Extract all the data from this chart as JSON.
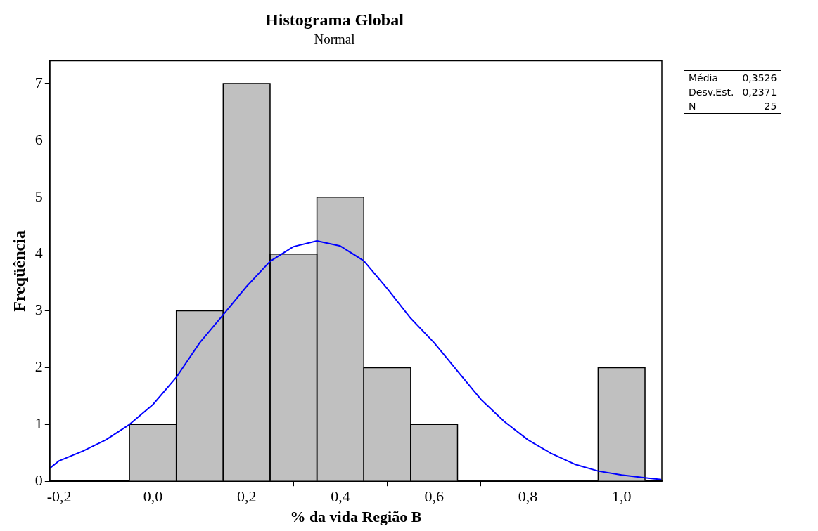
{
  "chart_data": {
    "type": "histogram",
    "title": "Histograma Global",
    "subtitle": "Normal",
    "xlabel": "% da vida Região B",
    "ylabel": "Freqüência",
    "bins": [
      -0.05,
      0.05,
      0.15,
      0.25,
      0.35,
      0.45,
      0.55,
      0.65,
      0.75,
      0.85,
      0.95,
      1.05
    ],
    "values": [
      1,
      3,
      7,
      4,
      5,
      2,
      1,
      0,
      0,
      0,
      2
    ],
    "color": "#c0c0c0",
    "series": [
      {
        "type": "line",
        "color": "#0000ff",
        "x": [
          -0.22,
          -0.2,
          -0.15,
          -0.1,
          -0.05,
          0.0,
          0.05,
          0.1,
          0.15,
          0.2,
          0.25,
          0.3,
          0.35,
          0.4,
          0.45,
          0.5,
          0.55,
          0.6,
          0.65,
          0.7,
          0.75,
          0.8,
          0.85,
          0.9,
          0.95,
          1.0,
          1.05,
          1.085
        ],
        "values": [
          0.23,
          0.36,
          0.53,
          0.73,
          1.0,
          1.35,
          1.83,
          2.44,
          2.93,
          3.43,
          3.87,
          4.13,
          4.23,
          4.14,
          3.88,
          3.39,
          2.87,
          2.44,
          1.94,
          1.44,
          1.05,
          0.73,
          0.49,
          0.3,
          0.18,
          0.11,
          0.06,
          0.03
        ]
      }
    ],
    "xlim": [
      -0.22,
      1.086
    ],
    "xticks": [
      {
        "value": -0.2,
        "label": "-0,2"
      },
      {
        "value": 0.0,
        "label": "0,0"
      },
      {
        "value": 0.2,
        "label": "0,2"
      },
      {
        "value": 0.4,
        "label": "0,4"
      },
      {
        "value": 0.6,
        "label": "0,6"
      },
      {
        "value": 0.8,
        "label": "0,8"
      },
      {
        "value": 1.0,
        "label": "1,0"
      }
    ],
    "ylim": [
      0,
      7.4
    ],
    "yticks": [
      0,
      1,
      2,
      3,
      4,
      5,
      6,
      7
    ],
    "grid": false,
    "legend": false,
    "marker": "none",
    "annotations": [
      "Média\t0,3526",
      "Desv.Est.\t0,2371",
      "N\t25"
    ]
  }
}
